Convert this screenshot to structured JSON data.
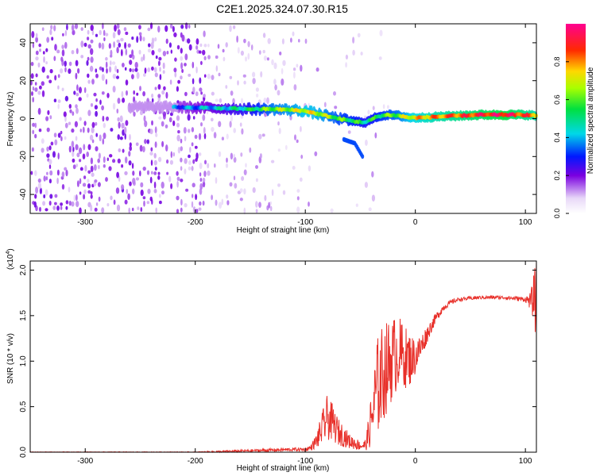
{
  "figure_title": "C2E1.2025.324.07.30.R15",
  "chart_data": [
    {
      "type": "heatmap",
      "title": "C2E1.2025.324.07.30.R15",
      "xlabel": "Height of straight line (km)",
      "ylabel": "Frequency (Hz)",
      "xlim": [
        -350,
        110
      ],
      "ylim": [
        -50,
        50
      ],
      "xticks": [
        -300,
        -200,
        -100,
        0,
        100
      ],
      "yticks": [
        -40,
        -20,
        0,
        20,
        40
      ],
      "colorbar": {
        "label": "Normalized spectral amplitude",
        "range": [
          0,
          1
        ],
        "ticks": [
          "0.0",
          "0.2",
          "0.4",
          "0.6",
          "0.8"
        ],
        "colormap": "white-purple-blue-cyan-green-yellow-red-magenta"
      },
      "signal_ridge": {
        "x": [
          -215,
          -180,
          -150,
          -130,
          -110,
          -100,
          -85,
          -70,
          -55,
          -45,
          -35,
          -25,
          -15,
          -5,
          5,
          20,
          40,
          60,
          80,
          100,
          110
        ],
        "frequency": [
          6,
          5.5,
          5,
          5,
          4.5,
          4,
          2,
          0,
          -1.5,
          -2,
          1,
          2,
          1.5,
          0.5,
          0.5,
          1,
          1.5,
          2,
          2,
          2,
          1.5
        ],
        "amplitude": [
          0.3,
          0.4,
          0.5,
          0.65,
          0.7,
          0.75,
          0.7,
          0.6,
          0.55,
          0.5,
          0.55,
          0.6,
          0.65,
          0.75,
          0.8,
          0.85,
          0.9,
          0.95,
          1.0,
          0.9,
          0.85
        ]
      },
      "side_branch": {
        "x": [
          -65,
          -55,
          -48
        ],
        "frequency": [
          -11,
          -13,
          -20
        ]
      },
      "noise_region_x": [
        -350,
        -105
      ]
    },
    {
      "type": "line",
      "xlabel": "Height of straight line (km)",
      "ylabel": "SNR (10 * v/v)",
      "y_scale_label": "(x10",
      "y_scale_exp": "4",
      "y_scale_close": ")",
      "xlim": [
        -350,
        110
      ],
      "ylim": [
        0,
        2.1
      ],
      "xticks": [
        -300,
        -200,
        -100,
        0,
        100
      ],
      "yticks": [
        "0.0",
        "0.5",
        "1.0",
        "1.5",
        "2.0"
      ],
      "series": [
        {
          "name": "SNR",
          "color": "#e8302a",
          "x": [
            -350,
            -300,
            -250,
            -200,
            -170,
            -140,
            -110,
            -100,
            -95,
            -90,
            -85,
            -80,
            -75,
            -70,
            -65,
            -60,
            -55,
            -50,
            -45,
            -40,
            -35,
            -30,
            -25,
            -20,
            -15,
            -10,
            -5,
            0,
            5,
            10,
            15,
            20,
            25,
            30,
            35,
            40,
            50,
            60,
            70,
            80,
            90,
            100,
            105,
            108,
            110
          ],
          "values": [
            0.0,
            0.0,
            0.0,
            0.0,
            0.01,
            0.02,
            0.03,
            0.03,
            0.05,
            0.12,
            0.25,
            0.38,
            0.32,
            0.22,
            0.18,
            0.12,
            0.1,
            0.07,
            0.08,
            0.35,
            0.7,
            0.85,
            0.95,
            1.05,
            1.1,
            1.05,
            1.02,
            1.05,
            1.15,
            1.28,
            1.4,
            1.5,
            1.58,
            1.63,
            1.66,
            1.68,
            1.69,
            1.7,
            1.7,
            1.7,
            1.69,
            1.68,
            1.66,
            1.7,
            1.65
          ]
        }
      ],
      "noise_amplitude": [
        0.005,
        0.005,
        0.005,
        0.005,
        0.01,
        0.015,
        0.02,
        0.02,
        0.03,
        0.08,
        0.18,
        0.25,
        0.2,
        0.15,
        0.12,
        0.08,
        0.07,
        0.05,
        0.06,
        0.3,
        0.55,
        0.55,
        0.5,
        0.45,
        0.4,
        0.35,
        0.3,
        0.2,
        0.15,
        0.1,
        0.07,
        0.05,
        0.04,
        0.03,
        0.025,
        0.02,
        0.02,
        0.02,
        0.02,
        0.02,
        0.025,
        0.03,
        0.1,
        0.3,
        0.45
      ]
    }
  ]
}
